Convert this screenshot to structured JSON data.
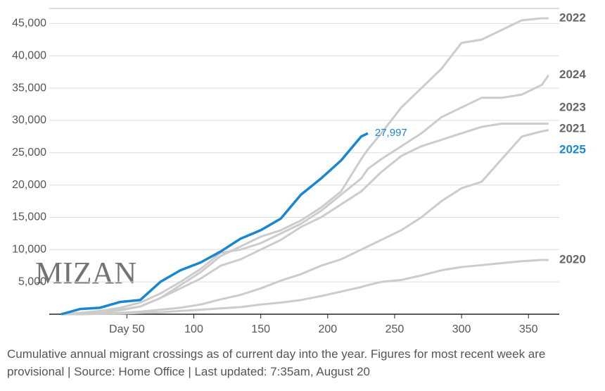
{
  "chart_data": {
    "type": "line",
    "caption": "Cumulative annual migrant crossings as of current day into the year. Figures for most recent week are provisional | Source: Home Office | Last updated: 7:35am, August 20",
    "watermark": "MIZAN",
    "x": [
      1,
      15,
      30,
      45,
      60,
      75,
      90,
      105,
      120,
      135,
      150,
      165,
      180,
      195,
      210,
      225,
      230,
      240,
      255,
      270,
      285,
      300,
      315,
      330,
      345,
      360,
      365
    ],
    "xlim": [
      -8,
      373
    ],
    "xticks": [
      {
        "value": 50,
        "label": "Day 50"
      },
      100,
      150,
      200,
      250,
      300,
      350
    ],
    "ylim": [
      0,
      47000
    ],
    "yticks": [
      {
        "value": 5000,
        "label": "5,000"
      },
      {
        "value": 10000,
        "label": "10,000"
      },
      {
        "value": 15000,
        "label": "15,000"
      },
      {
        "value": 20000,
        "label": "20,000"
      },
      {
        "value": 25000,
        "label": "25,000"
      },
      {
        "value": 30000,
        "label": "30,000"
      },
      {
        "value": 35000,
        "label": "35,000"
      },
      {
        "value": 40000,
        "label": "40,000"
      },
      {
        "value": 45000,
        "label": "45,000"
      }
    ],
    "grid": true,
    "series": [
      {
        "name": "2020",
        "color": "#cccccc",
        "values": [
          0,
          0,
          50,
          100,
          200,
          300,
          500,
          700,
          900,
          1100,
          1500,
          1800,
          2200,
          2800,
          3500,
          4200,
          4500,
          5000,
          5300,
          6000,
          6800,
          7300,
          7600,
          7900,
          8200,
          8400,
          8400
        ]
      },
      {
        "name": "2021",
        "color": "#cccccc",
        "values": [
          0,
          0,
          100,
          200,
          400,
          700,
          1000,
          1500,
          2300,
          3000,
          4000,
          5200,
          6200,
          7500,
          8500,
          10000,
          10500,
          11500,
          13000,
          15000,
          17500,
          19500,
          20500,
          24000,
          27500,
          28300,
          28500
        ]
      },
      {
        "name": "2023",
        "color": "#cccccc",
        "values": [
          0,
          100,
          300,
          700,
          1200,
          2500,
          4000,
          5500,
          7500,
          8500,
          10000,
          11500,
          13500,
          15000,
          17000,
          19000,
          20000,
          22000,
          24500,
          26000,
          27000,
          28000,
          29000,
          29500,
          29500,
          29500,
          29500
        ]
      },
      {
        "name": "2024",
        "color": "#cccccc",
        "values": [
          0,
          200,
          500,
          1000,
          1800,
          3200,
          5000,
          7000,
          9500,
          10000,
          11000,
          12500,
          14000,
          16000,
          18500,
          21000,
          22500,
          24000,
          26000,
          28000,
          30500,
          32000,
          33500,
          33500,
          34000,
          35500,
          37000
        ]
      },
      {
        "name": "2022",
        "color": "#cccccc",
        "values": [
          0,
          100,
          300,
          600,
          1200,
          2500,
          4500,
          6500,
          9000,
          10500,
          12000,
          13000,
          14500,
          16500,
          19000,
          24000,
          25500,
          28000,
          32000,
          35000,
          38000,
          42000,
          42500,
          44000,
          45500,
          45800,
          45800
        ]
      },
      {
        "name": "2025",
        "color": "#1a86d0",
        "values": [
          0,
          800,
          1000,
          1900,
          2200,
          5000,
          6800,
          8000,
          9700,
          11700,
          13000,
          14800,
          18500,
          21000,
          23800,
          27500,
          27997,
          null,
          null,
          null,
          null,
          null,
          null,
          null,
          null,
          null,
          null
        ],
        "value_labels": [
          null,
          null,
          null,
          null,
          null,
          null,
          null,
          null,
          null,
          null,
          null,
          null,
          null,
          null,
          null,
          null,
          "27,997",
          null,
          null,
          null,
          null,
          null,
          null,
          null,
          null,
          null,
          null
        ]
      }
    ]
  }
}
